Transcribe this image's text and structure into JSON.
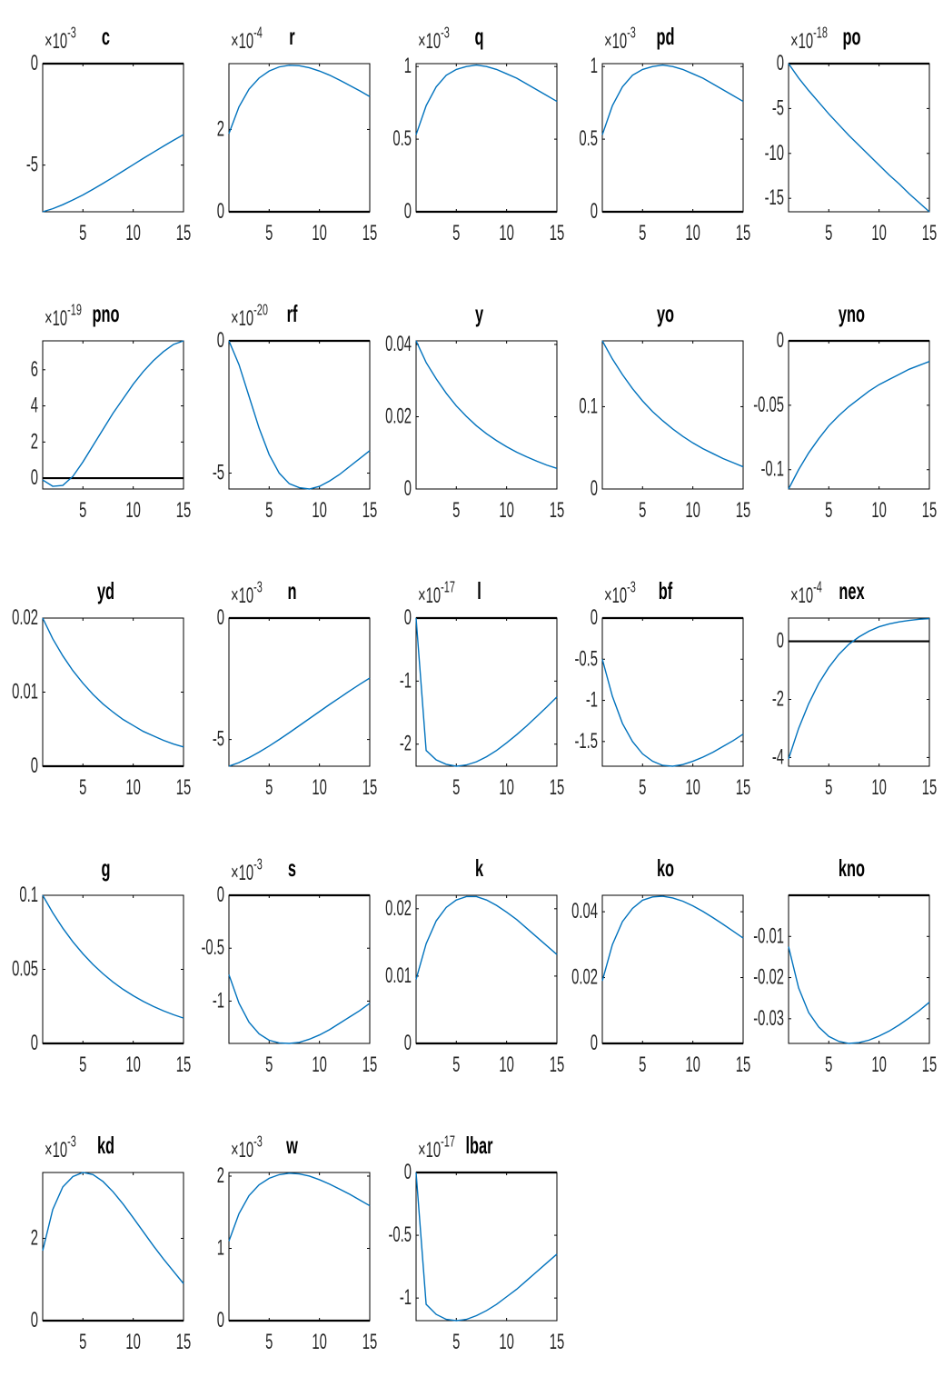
{
  "figure": {
    "colors": {
      "series": "#0072BD",
      "axes": "#000000",
      "text": "#262626"
    }
  },
  "chart_data": [
    {
      "type": "line",
      "title": "c",
      "x": [
        1,
        2,
        3,
        4,
        5,
        6,
        7,
        8,
        9,
        10,
        11,
        12,
        13,
        14,
        15
      ],
      "y_scale_exponent": "-3",
      "ylim": [
        -7.3,
        0
      ],
      "yticks": [
        -5,
        0
      ],
      "ytick_labels": [
        "-5",
        "0"
      ],
      "xticks": [
        5,
        10,
        15
      ],
      "xtick_labels": [
        "5",
        "10",
        "15"
      ],
      "zero_line": true,
      "values": [
        -7.3,
        -7.15,
        -6.95,
        -6.72,
        -6.47,
        -6.19,
        -5.9,
        -5.6,
        -5.29,
        -4.98,
        -4.67,
        -4.37,
        -4.07,
        -3.78,
        -3.5
      ]
    },
    {
      "type": "line",
      "title": "r",
      "x": [
        1,
        2,
        3,
        4,
        5,
        6,
        7,
        8,
        9,
        10,
        11,
        12,
        13,
        14,
        15
      ],
      "y_scale_exponent": "-4",
      "ylim": [
        0,
        3.6
      ],
      "yticks": [
        0,
        2
      ],
      "ytick_labels": [
        "0",
        "2"
      ],
      "xticks": [
        5,
        10,
        15
      ],
      "xtick_labels": [
        "5",
        "10",
        "15"
      ],
      "zero_line": true,
      "values": [
        1.9,
        2.55,
        2.98,
        3.25,
        3.42,
        3.52,
        3.56,
        3.55,
        3.5,
        3.42,
        3.32,
        3.2,
        3.07,
        2.94,
        2.8
      ]
    },
    {
      "type": "line",
      "title": "q",
      "x": [
        1,
        2,
        3,
        4,
        5,
        6,
        7,
        8,
        9,
        10,
        11,
        12,
        13,
        14,
        15
      ],
      "y_scale_exponent": "-3",
      "ylim": [
        0,
        1.02
      ],
      "yticks": [
        0,
        0.5,
        1
      ],
      "ytick_labels": [
        "0",
        "0.5",
        "1"
      ],
      "xticks": [
        5,
        10,
        15
      ],
      "xtick_labels": [
        "5",
        "10",
        "15"
      ],
      "zero_line": true,
      "values": [
        0.53,
        0.73,
        0.86,
        0.94,
        0.98,
        1.0,
        1.01,
        1.0,
        0.98,
        0.95,
        0.92,
        0.88,
        0.84,
        0.8,
        0.76
      ]
    },
    {
      "type": "line",
      "title": "pd",
      "x": [
        1,
        2,
        3,
        4,
        5,
        6,
        7,
        8,
        9,
        10,
        11,
        12,
        13,
        14,
        15
      ],
      "y_scale_exponent": "-3",
      "ylim": [
        0,
        1.02
      ],
      "yticks": [
        0,
        0.5,
        1
      ],
      "ytick_labels": [
        "0",
        "0.5",
        "1"
      ],
      "xticks": [
        5,
        10,
        15
      ],
      "xtick_labels": [
        "5",
        "10",
        "15"
      ],
      "zero_line": true,
      "values": [
        0.53,
        0.73,
        0.86,
        0.94,
        0.98,
        1.0,
        1.01,
        1.0,
        0.98,
        0.95,
        0.92,
        0.88,
        0.84,
        0.8,
        0.76
      ]
    },
    {
      "type": "line",
      "title": "po",
      "x": [
        1,
        2,
        3,
        4,
        5,
        6,
        7,
        8,
        9,
        10,
        11,
        12,
        13,
        14,
        15
      ],
      "y_scale_exponent": "-18",
      "ylim": [
        -16.5,
        0
      ],
      "yticks": [
        -15,
        -10,
        -5,
        0
      ],
      "ytick_labels": [
        "-15",
        "-10",
        "-5",
        "0"
      ],
      "xticks": [
        5,
        10,
        15
      ],
      "xtick_labels": [
        "5",
        "10",
        "15"
      ],
      "zero_line": true,
      "values": [
        0,
        -1.6,
        -3.0,
        -4.3,
        -5.6,
        -6.8,
        -8.0,
        -9.1,
        -10.2,
        -11.3,
        -12.4,
        -13.4,
        -14.5,
        -15.5,
        -16.5
      ]
    },
    {
      "type": "line",
      "title": "pno",
      "x": [
        1,
        2,
        3,
        4,
        5,
        6,
        7,
        8,
        9,
        10,
        11,
        12,
        13,
        14,
        15
      ],
      "y_scale_exponent": "-19",
      "ylim": [
        -0.6,
        7.6
      ],
      "yticks": [
        0,
        2,
        4,
        6
      ],
      "ytick_labels": [
        "0",
        "2",
        "4",
        "6"
      ],
      "xticks": [
        5,
        10,
        15
      ],
      "xtick_labels": [
        "5",
        "10",
        "15"
      ],
      "zero_line": true,
      "values": [
        -0.1,
        -0.45,
        -0.4,
        0.1,
        0.9,
        1.8,
        2.7,
        3.6,
        4.4,
        5.2,
        5.9,
        6.5,
        7.0,
        7.4,
        7.6
      ]
    },
    {
      "type": "line",
      "title": "rf",
      "x": [
        1,
        2,
        3,
        4,
        5,
        6,
        7,
        8,
        9,
        10,
        11,
        12,
        13,
        14,
        15
      ],
      "y_scale_exponent": "-20",
      "ylim": [
        -5.6,
        0
      ],
      "yticks": [
        -5,
        0
      ],
      "ytick_labels": [
        "-5",
        "0"
      ],
      "xticks": [
        5,
        10,
        15
      ],
      "xtick_labels": [
        "5",
        "10",
        "15"
      ],
      "zero_line": true,
      "values": [
        0,
        -0.9,
        -2.1,
        -3.3,
        -4.3,
        -5.0,
        -5.4,
        -5.55,
        -5.6,
        -5.5,
        -5.3,
        -5.05,
        -4.75,
        -4.45,
        -4.15
      ]
    },
    {
      "type": "line",
      "title": "y",
      "x": [
        1,
        2,
        3,
        4,
        5,
        6,
        7,
        8,
        9,
        10,
        11,
        12,
        13,
        14,
        15
      ],
      "ylim": [
        0,
        0.041
      ],
      "yticks": [
        0,
        0.02,
        0.04
      ],
      "ytick_labels": [
        "0",
        "0.02",
        "0.04"
      ],
      "xticks": [
        5,
        10,
        15
      ],
      "xtick_labels": [
        "5",
        "10",
        "15"
      ],
      "zero_line": false,
      "values": [
        0.041,
        0.035,
        0.0305,
        0.0265,
        0.023,
        0.0201,
        0.0175,
        0.0153,
        0.0134,
        0.0117,
        0.0102,
        0.0089,
        0.0077,
        0.0066,
        0.0057
      ]
    },
    {
      "type": "line",
      "title": "yo",
      "x": [
        1,
        2,
        3,
        4,
        5,
        6,
        7,
        8,
        9,
        10,
        11,
        12,
        13,
        14,
        15
      ],
      "ylim": [
        0,
        0.18
      ],
      "yticks": [
        0,
        0.1
      ],
      "ytick_labels": [
        "0",
        "0.1"
      ],
      "xticks": [
        5,
        10,
        15
      ],
      "xtick_labels": [
        "5",
        "10",
        "15"
      ],
      "zero_line": false,
      "values": [
        0.18,
        0.158,
        0.139,
        0.122,
        0.107,
        0.094,
        0.083,
        0.073,
        0.064,
        0.056,
        0.049,
        0.043,
        0.037,
        0.032,
        0.027
      ]
    },
    {
      "type": "line",
      "title": "yno",
      "x": [
        1,
        2,
        3,
        4,
        5,
        6,
        7,
        8,
        9,
        10,
        11,
        12,
        13,
        14,
        15
      ],
      "ylim": [
        -0.115,
        0
      ],
      "yticks": [
        -0.1,
        -0.05,
        0
      ],
      "ytick_labels": [
        "-0.1",
        "-0.05",
        "0"
      ],
      "xticks": [
        5,
        10,
        15
      ],
      "xtick_labels": [
        "5",
        "10",
        "15"
      ],
      "zero_line": true,
      "values": [
        -0.115,
        -0.1,
        -0.087,
        -0.076,
        -0.066,
        -0.058,
        -0.051,
        -0.045,
        -0.039,
        -0.034,
        -0.03,
        -0.026,
        -0.022,
        -0.019,
        -0.016
      ]
    },
    {
      "type": "line",
      "title": "yd",
      "x": [
        1,
        2,
        3,
        4,
        5,
        6,
        7,
        8,
        9,
        10,
        11,
        12,
        13,
        14,
        15
      ],
      "ylim": [
        0,
        0.02
      ],
      "yticks": [
        0,
        0.01,
        0.02
      ],
      "ytick_labels": [
        "0",
        "0.01",
        "0.02"
      ],
      "xticks": [
        5,
        10,
        15
      ],
      "xtick_labels": [
        "5",
        "10",
        "15"
      ],
      "zero_line": true,
      "values": [
        0.02,
        0.0172,
        0.0149,
        0.0129,
        0.0112,
        0.0097,
        0.0084,
        0.0073,
        0.0063,
        0.0055,
        0.0047,
        0.0041,
        0.0035,
        0.003,
        0.0026
      ]
    },
    {
      "type": "line",
      "title": "n",
      "x": [
        1,
        2,
        3,
        4,
        5,
        6,
        7,
        8,
        9,
        10,
        11,
        12,
        13,
        14,
        15
      ],
      "y_scale_exponent": "-3",
      "ylim": [
        -6.1,
        0
      ],
      "yticks": [
        -5,
        0
      ],
      "ytick_labels": [
        "-5",
        "0"
      ],
      "xticks": [
        5,
        10,
        15
      ],
      "xtick_labels": [
        "5",
        "10",
        "15"
      ],
      "zero_line": true,
      "values": [
        -6.1,
        -5.95,
        -5.75,
        -5.52,
        -5.27,
        -5.0,
        -4.72,
        -4.43,
        -4.14,
        -3.85,
        -3.56,
        -3.28,
        -3.0,
        -2.73,
        -2.47
      ]
    },
    {
      "type": "line",
      "title": "l",
      "x": [
        1,
        2,
        3,
        4,
        5,
        6,
        7,
        8,
        9,
        10,
        11,
        12,
        13,
        14,
        15
      ],
      "y_scale_exponent": "-17",
      "ylim": [
        -2.35,
        0
      ],
      "yticks": [
        -2,
        -1,
        0
      ],
      "ytick_labels": [
        "-2",
        "-1",
        "0"
      ],
      "xticks": [
        5,
        10,
        15
      ],
      "xtick_labels": [
        "5",
        "10",
        "15"
      ],
      "zero_line": true,
      "values": [
        0,
        -2.1,
        -2.25,
        -2.32,
        -2.35,
        -2.33,
        -2.28,
        -2.2,
        -2.1,
        -1.98,
        -1.85,
        -1.71,
        -1.56,
        -1.41,
        -1.25
      ]
    },
    {
      "type": "line",
      "title": "bf",
      "x": [
        1,
        2,
        3,
        4,
        5,
        6,
        7,
        8,
        9,
        10,
        11,
        12,
        13,
        14,
        15
      ],
      "y_scale_exponent": "-3",
      "ylim": [
        -1.8,
        0
      ],
      "yticks": [
        -1.5,
        -1,
        -0.5,
        0
      ],
      "ytick_labels": [
        "-1.5",
        "-1",
        "-0.5",
        "0"
      ],
      "xticks": [
        5,
        10,
        15
      ],
      "xtick_labels": [
        "5",
        "10",
        "15"
      ],
      "zero_line": true,
      "values": [
        -0.5,
        -0.95,
        -1.28,
        -1.5,
        -1.65,
        -1.74,
        -1.79,
        -1.8,
        -1.78,
        -1.74,
        -1.69,
        -1.63,
        -1.56,
        -1.49,
        -1.41
      ]
    },
    {
      "type": "line",
      "title": "nex",
      "x": [
        1,
        2,
        3,
        4,
        5,
        6,
        7,
        8,
        9,
        10,
        11,
        12,
        13,
        14,
        15
      ],
      "y_scale_exponent": "-4",
      "ylim": [
        -4.3,
        0.8
      ],
      "yticks": [
        -4,
        -2,
        0
      ],
      "ytick_labels": [
        "-4",
        "-2",
        "0"
      ],
      "xticks": [
        5,
        10,
        15
      ],
      "xtick_labels": [
        "5",
        "10",
        "15"
      ],
      "zero_line": true,
      "values": [
        -4.05,
        -3.0,
        -2.15,
        -1.45,
        -0.9,
        -0.45,
        -0.1,
        0.15,
        0.35,
        0.5,
        0.6,
        0.67,
        0.72,
        0.76,
        0.78
      ]
    },
    {
      "type": "line",
      "title": "g",
      "x": [
        1,
        2,
        3,
        4,
        5,
        6,
        7,
        8,
        9,
        10,
        11,
        12,
        13,
        14,
        15
      ],
      "ylim": [
        0,
        0.1
      ],
      "yticks": [
        0,
        0.05,
        0.1
      ],
      "ytick_labels": [
        "0",
        "0.05",
        "0.1"
      ],
      "xticks": [
        5,
        10,
        15
      ],
      "xtick_labels": [
        "5",
        "10",
        "15"
      ],
      "zero_line": true,
      "values": [
        0.1,
        0.0882,
        0.0778,
        0.0686,
        0.0605,
        0.0533,
        0.047,
        0.0414,
        0.0365,
        0.0322,
        0.0284,
        0.025,
        0.022,
        0.0194,
        0.0171
      ]
    },
    {
      "type": "line",
      "title": "s",
      "x": [
        1,
        2,
        3,
        4,
        5,
        6,
        7,
        8,
        9,
        10,
        11,
        12,
        13,
        14,
        15
      ],
      "y_scale_exponent": "-3",
      "ylim": [
        -1.4,
        0
      ],
      "yticks": [
        -1,
        -0.5,
        0
      ],
      "ytick_labels": [
        "-1",
        "-0.5",
        "0"
      ],
      "xticks": [
        5,
        10,
        15
      ],
      "xtick_labels": [
        "5",
        "10",
        "15"
      ],
      "zero_line": true,
      "values": [
        -0.75,
        -1.02,
        -1.2,
        -1.31,
        -1.37,
        -1.395,
        -1.4,
        -1.39,
        -1.36,
        -1.32,
        -1.27,
        -1.21,
        -1.15,
        -1.09,
        -1.02
      ]
    },
    {
      "type": "line",
      "title": "k",
      "x": [
        1,
        2,
        3,
        4,
        5,
        6,
        7,
        8,
        9,
        10,
        11,
        12,
        13,
        14,
        15
      ],
      "ylim": [
        0,
        0.022
      ],
      "yticks": [
        0,
        0.01,
        0.02
      ],
      "ytick_labels": [
        "0",
        "0.01",
        "0.02"
      ],
      "xticks": [
        5,
        10,
        15
      ],
      "xtick_labels": [
        "5",
        "10",
        "15"
      ],
      "zero_line": true,
      "values": [
        0.0095,
        0.0148,
        0.0182,
        0.0202,
        0.0213,
        0.0218,
        0.0218,
        0.0213,
        0.0205,
        0.0195,
        0.0184,
        0.0171,
        0.0158,
        0.0145,
        0.0132
      ]
    },
    {
      "type": "line",
      "title": "ko",
      "x": [
        1,
        2,
        3,
        4,
        5,
        6,
        7,
        8,
        9,
        10,
        11,
        12,
        13,
        14,
        15
      ],
      "ylim": [
        0,
        0.045
      ],
      "yticks": [
        0,
        0.02,
        0.04
      ],
      "ytick_labels": [
        "0",
        "0.02",
        "0.04"
      ],
      "xticks": [
        5,
        10,
        15
      ],
      "xtick_labels": [
        "5",
        "10",
        "15"
      ],
      "zero_line": true,
      "values": [
        0.019,
        0.03,
        0.037,
        0.041,
        0.0435,
        0.0445,
        0.0447,
        0.0442,
        0.0432,
        0.0418,
        0.0401,
        0.0382,
        0.0362,
        0.0341,
        0.032
      ]
    },
    {
      "type": "line",
      "title": "kno",
      "x": [
        1,
        2,
        3,
        4,
        5,
        6,
        7,
        8,
        9,
        10,
        11,
        12,
        13,
        14,
        15
      ],
      "ylim": [
        -0.036,
        0
      ],
      "yticks": [
        -0.03,
        -0.02,
        -0.01
      ],
      "ytick_labels": [
        "-0.03",
        "-0.02",
        "-0.01"
      ],
      "xticks": [
        5,
        10,
        15
      ],
      "xtick_labels": [
        "5",
        "10",
        "15"
      ],
      "zero_line": true,
      "values": [
        -0.0125,
        -0.0225,
        -0.0285,
        -0.032,
        -0.0343,
        -0.0355,
        -0.036,
        -0.0358,
        -0.0352,
        -0.0342,
        -0.033,
        -0.0315,
        -0.0298,
        -0.028,
        -0.026
      ]
    },
    {
      "type": "line",
      "title": "kd",
      "x": [
        1,
        2,
        3,
        4,
        5,
        6,
        7,
        8,
        9,
        10,
        11,
        12,
        13,
        14,
        15
      ],
      "y_scale_exponent": "-3",
      "ylim": [
        0,
        3.6
      ],
      "yticks": [
        0,
        2
      ],
      "ytick_labels": [
        "0",
        "2"
      ],
      "xticks": [
        5,
        10,
        15
      ],
      "xtick_labels": [
        "5",
        "10",
        "15"
      ],
      "zero_line": true,
      "values": [
        1.7,
        2.7,
        3.25,
        3.5,
        3.6,
        3.55,
        3.38,
        3.13,
        2.83,
        2.5,
        2.16,
        1.82,
        1.5,
        1.2,
        0.9
      ]
    },
    {
      "type": "line",
      "title": "w",
      "x": [
        1,
        2,
        3,
        4,
        5,
        6,
        7,
        8,
        9,
        10,
        11,
        12,
        13,
        14,
        15
      ],
      "y_scale_exponent": "-3",
      "ylim": [
        0,
        2.05
      ],
      "yticks": [
        0,
        1,
        2
      ],
      "ytick_labels": [
        "0",
        "1",
        "2"
      ],
      "xticks": [
        5,
        10,
        15
      ],
      "xtick_labels": [
        "5",
        "10",
        "15"
      ],
      "zero_line": true,
      "values": [
        1.1,
        1.48,
        1.73,
        1.88,
        1.97,
        2.02,
        2.04,
        2.03,
        2.0,
        1.95,
        1.89,
        1.82,
        1.75,
        1.67,
        1.59
      ]
    },
    {
      "type": "line",
      "title": "lbar",
      "x": [
        1,
        2,
        3,
        4,
        5,
        6,
        7,
        8,
        9,
        10,
        11,
        12,
        13,
        14,
        15
      ],
      "y_scale_exponent": "-17",
      "ylim": [
        -1.18,
        0
      ],
      "yticks": [
        -1,
        -0.5,
        0
      ],
      "ytick_labels": [
        "-1",
        "-0.5",
        "0"
      ],
      "xticks": [
        5,
        10,
        15
      ],
      "xtick_labels": [
        "5",
        "10",
        "15"
      ],
      "zero_line": true,
      "values": [
        0,
        -1.05,
        -1.13,
        -1.17,
        -1.18,
        -1.17,
        -1.14,
        -1.1,
        -1.05,
        -0.99,
        -0.93,
        -0.86,
        -0.79,
        -0.72,
        -0.65
      ]
    }
  ]
}
